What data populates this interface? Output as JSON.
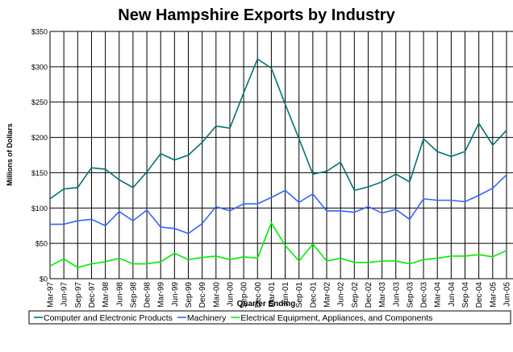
{
  "chart_data": {
    "type": "line",
    "title": "New Hampshire Exports by Industry",
    "x_label": "Quarter Ending",
    "y_label": "Millions of Dollars",
    "categories": [
      "Mar-97",
      "Jun-97",
      "Sep-97",
      "Dec-97",
      "Mar-98",
      "Jun-98",
      "Sep-98",
      "Dec-98",
      "Mar-99",
      "Jun-99",
      "Sep-99",
      "Dec-99",
      "Mar-00",
      "Jun-00",
      "Sep-00",
      "Dec-00",
      "Mar-01",
      "Jun-01",
      "Sep-01",
      "Dec-01",
      "Mar-02",
      "Jun-02",
      "Sep-02",
      "Dec-02",
      "Mar-03",
      "Jun-03",
      "Sep-03",
      "Dec-03",
      "Mar-04",
      "Jun-04",
      "Sep-04",
      "Dec-04",
      "Mar-05",
      "Jun-05"
    ],
    "series": [
      {
        "name": "Computer and Electronic Products",
        "color": "#007373",
        "values": [
          113,
          127,
          129,
          157,
          155,
          140,
          129,
          151,
          177,
          168,
          175,
          193,
          216,
          213,
          263,
          311,
          298,
          247,
          198,
          148,
          152,
          165,
          125,
          130,
          137,
          148,
          137,
          198,
          180,
          173,
          180,
          220,
          189,
          210
        ]
      },
      {
        "name": "Machinery",
        "color": "#3366ff",
        "values": [
          77,
          77,
          82,
          84,
          75,
          95,
          82,
          97,
          73,
          71,
          64,
          78,
          102,
          96,
          106,
          106,
          115,
          125,
          108,
          120,
          96,
          96,
          94,
          102,
          93,
          98,
          84,
          113,
          111,
          111,
          109,
          118,
          128,
          147
        ]
      },
      {
        "name": "Electrical Equipment, Appliances, and Components",
        "color": "#00ee00",
        "values": [
          18,
          28,
          16,
          21,
          24,
          29,
          21,
          21,
          24,
          36,
          27,
          30,
          32,
          27,
          31,
          29,
          79,
          47,
          25,
          49,
          25,
          29,
          23,
          23,
          25,
          25,
          21,
          27,
          29,
          32,
          32,
          34,
          31,
          40
        ]
      }
    ],
    "ylim": [
      0,
      350
    ],
    "yticks": [
      {
        "value": 0,
        "label": "$0"
      },
      {
        "value": 50,
        "label": "$50"
      },
      {
        "value": 100,
        "label": "$100"
      },
      {
        "value": 150,
        "label": "$150"
      },
      {
        "value": 200,
        "label": "$200"
      },
      {
        "value": 250,
        "label": "$250"
      },
      {
        "value": 300,
        "label": "$300"
      },
      {
        "value": 350,
        "label": "$350"
      }
    ],
    "grid": true,
    "legend": "bottom"
  }
}
